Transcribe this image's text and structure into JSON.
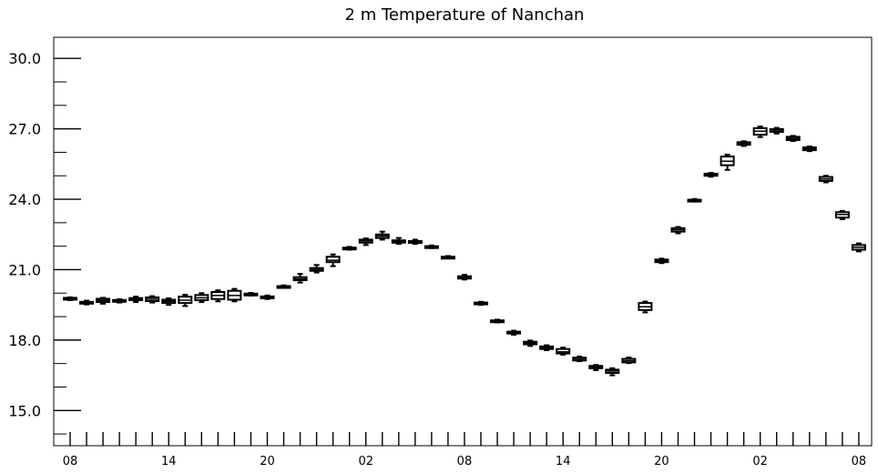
{
  "chart_data": {
    "type": "box",
    "title": "2 m Temperature of Nanchan",
    "xlabel": "",
    "ylabel": "",
    "ylim": [
      13.5,
      30.9
    ],
    "y_ticks": [
      "15.0",
      "18.0",
      "21.0",
      "24.0",
      "27.0",
      "30.0"
    ],
    "x_ticks": [
      "08",
      "14",
      "20",
      "02",
      "08",
      "14",
      "20",
      "02",
      "08"
    ],
    "grid": false,
    "legend": "none",
    "boxes": [
      {
        "index": 0,
        "min": 19.7,
        "q1": 19.74,
        "median": 19.76,
        "q3": 19.8,
        "max": 19.82
      },
      {
        "index": 1,
        "min": 19.52,
        "q1": 19.56,
        "median": 19.6,
        "q3": 19.63,
        "max": 19.68
      },
      {
        "index": 2,
        "min": 19.55,
        "q1": 19.62,
        "median": 19.69,
        "q3": 19.76,
        "max": 19.8
      },
      {
        "index": 3,
        "min": 19.6,
        "q1": 19.64,
        "median": 19.68,
        "q3": 19.71,
        "max": 19.74
      },
      {
        "index": 4,
        "min": 19.62,
        "q1": 19.7,
        "median": 19.75,
        "q3": 19.79,
        "max": 19.85
      },
      {
        "index": 5,
        "min": 19.6,
        "q1": 19.66,
        "median": 19.74,
        "q3": 19.82,
        "max": 19.87
      },
      {
        "index": 6,
        "min": 19.5,
        "q1": 19.58,
        "median": 19.65,
        "q3": 19.72,
        "max": 19.78
      },
      {
        "index": 7,
        "min": 19.45,
        "q1": 19.58,
        "median": 19.7,
        "q3": 19.85,
        "max": 19.93
      },
      {
        "index": 8,
        "min": 19.62,
        "q1": 19.7,
        "median": 19.8,
        "q3": 19.92,
        "max": 20.0
      },
      {
        "index": 9,
        "min": 19.65,
        "q1": 19.75,
        "median": 19.9,
        "q3": 20.05,
        "max": 20.12
      },
      {
        "index": 10,
        "min": 19.65,
        "q1": 19.72,
        "median": 19.9,
        "q3": 20.1,
        "max": 20.18
      },
      {
        "index": 11,
        "min": 19.9,
        "q1": 19.93,
        "median": 19.95,
        "q3": 19.98,
        "max": 20.01
      },
      {
        "index": 12,
        "min": 19.75,
        "q1": 19.78,
        "median": 19.82,
        "q3": 19.86,
        "max": 19.9
      },
      {
        "index": 13,
        "min": 20.23,
        "q1": 20.26,
        "median": 20.28,
        "q3": 20.3,
        "max": 20.33
      },
      {
        "index": 14,
        "min": 20.45,
        "q1": 20.55,
        "median": 20.6,
        "q3": 20.68,
        "max": 20.82
      },
      {
        "index": 15,
        "min": 20.88,
        "q1": 20.95,
        "median": 21.0,
        "q3": 21.07,
        "max": 21.2
      },
      {
        "index": 16,
        "min": 21.15,
        "q1": 21.32,
        "median": 21.4,
        "q3": 21.55,
        "max": 21.65
      },
      {
        "index": 17,
        "min": 21.85,
        "q1": 21.88,
        "median": 21.9,
        "q3": 21.94,
        "max": 21.97
      },
      {
        "index": 18,
        "min": 22.05,
        "q1": 22.15,
        "median": 22.22,
        "q3": 22.28,
        "max": 22.33
      },
      {
        "index": 19,
        "min": 22.28,
        "q1": 22.35,
        "median": 22.43,
        "q3": 22.5,
        "max": 22.62
      },
      {
        "index": 20,
        "min": 22.1,
        "q1": 22.15,
        "median": 22.2,
        "q3": 22.25,
        "max": 22.35
      },
      {
        "index": 21,
        "min": 22.1,
        "q1": 22.14,
        "median": 22.18,
        "q3": 22.22,
        "max": 22.28
      },
      {
        "index": 22,
        "min": 21.92,
        "q1": 21.95,
        "median": 21.97,
        "q3": 22.0,
        "max": 22.03
      },
      {
        "index": 23,
        "min": 21.48,
        "q1": 21.51,
        "median": 21.53,
        "q3": 21.55,
        "max": 21.58
      },
      {
        "index": 24,
        "min": 20.58,
        "q1": 20.62,
        "median": 20.66,
        "q3": 20.72,
        "max": 20.78
      },
      {
        "index": 25,
        "min": 19.5,
        "q1": 19.54,
        "median": 19.57,
        "q3": 19.6,
        "max": 19.63
      },
      {
        "index": 26,
        "min": 18.75,
        "q1": 18.78,
        "median": 18.81,
        "q3": 18.84,
        "max": 18.87
      },
      {
        "index": 27,
        "min": 18.23,
        "q1": 18.28,
        "median": 18.32,
        "q3": 18.36,
        "max": 18.4
      },
      {
        "index": 28,
        "min": 17.75,
        "q1": 17.82,
        "median": 17.87,
        "q3": 17.93,
        "max": 17.98
      },
      {
        "index": 29,
        "min": 17.57,
        "q1": 17.62,
        "median": 17.67,
        "q3": 17.73,
        "max": 17.78
      },
      {
        "index": 30,
        "min": 17.38,
        "q1": 17.43,
        "median": 17.5,
        "q3": 17.62,
        "max": 17.68
      },
      {
        "index": 31,
        "min": 17.1,
        "q1": 17.13,
        "median": 17.18,
        "q3": 17.25,
        "max": 17.3
      },
      {
        "index": 32,
        "min": 16.72,
        "q1": 16.8,
        "median": 16.86,
        "q3": 16.9,
        "max": 16.94
      },
      {
        "index": 33,
        "min": 16.5,
        "q1": 16.6,
        "median": 16.68,
        "q3": 16.74,
        "max": 16.8
      },
      {
        "index": 34,
        "min": 17.02,
        "q1": 17.05,
        "median": 17.12,
        "q3": 17.2,
        "max": 17.26
      },
      {
        "index": 35,
        "min": 19.18,
        "q1": 19.28,
        "median": 19.42,
        "q3": 19.58,
        "max": 19.64
      },
      {
        "index": 36,
        "min": 21.28,
        "q1": 21.32,
        "median": 21.38,
        "q3": 21.43,
        "max": 21.47
      },
      {
        "index": 37,
        "min": 22.55,
        "q1": 22.62,
        "median": 22.7,
        "q3": 22.77,
        "max": 22.82
      },
      {
        "index": 38,
        "min": 23.9,
        "q1": 23.92,
        "median": 23.95,
        "q3": 23.98,
        "max": 24.01
      },
      {
        "index": 39,
        "min": 24.96,
        "q1": 25.0,
        "median": 25.05,
        "q3": 25.09,
        "max": 25.12
      },
      {
        "index": 40,
        "min": 25.25,
        "q1": 25.45,
        "median": 25.62,
        "q3": 25.82,
        "max": 25.9
      },
      {
        "index": 41,
        "min": 26.27,
        "q1": 26.32,
        "median": 26.38,
        "q3": 26.43,
        "max": 26.47
      },
      {
        "index": 42,
        "min": 26.65,
        "q1": 26.75,
        "median": 26.9,
        "q3": 27.03,
        "max": 27.1
      },
      {
        "index": 43,
        "min": 26.8,
        "q1": 26.87,
        "median": 26.94,
        "q3": 26.99,
        "max": 27.04
      },
      {
        "index": 44,
        "min": 26.48,
        "q1": 26.52,
        "median": 26.59,
        "q3": 26.66,
        "max": 26.7
      },
      {
        "index": 45,
        "min": 26.05,
        "q1": 26.09,
        "median": 26.15,
        "q3": 26.21,
        "max": 26.25
      },
      {
        "index": 46,
        "min": 24.72,
        "q1": 24.78,
        "median": 24.86,
        "q3": 24.95,
        "max": 25.0
      },
      {
        "index": 47,
        "min": 23.15,
        "q1": 23.22,
        "median": 23.35,
        "q3": 23.45,
        "max": 23.5
      },
      {
        "index": 48,
        "min": 21.78,
        "q1": 21.85,
        "median": 21.95,
        "q3": 22.05,
        "max": 22.12
      }
    ]
  }
}
